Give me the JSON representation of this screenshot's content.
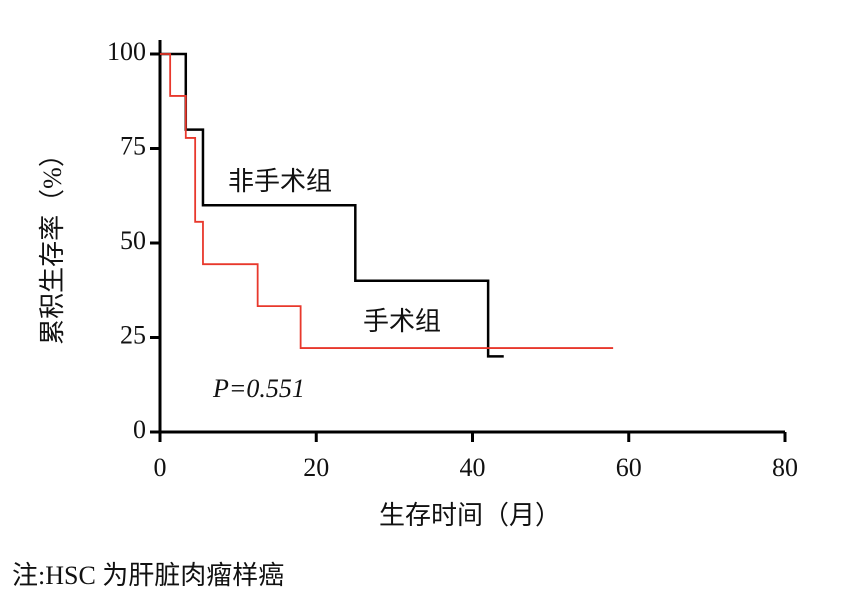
{
  "chart_data": {
    "type": "step",
    "x_label": "生存时间（月）",
    "y_label": "累积生存率（%）",
    "xlim": [
      0,
      80
    ],
    "xticks": [
      0,
      20,
      40,
      60,
      80
    ],
    "ylim": [
      0,
      100
    ],
    "yticks": [
      0,
      25,
      50,
      75,
      100
    ],
    "series": [
      {
        "name": "非手术组",
        "color": "#000000",
        "x": [
          0,
          3.3,
          3.3,
          5.5,
          5.5,
          25,
          25,
          42,
          42,
          44
        ],
        "values": [
          100,
          100,
          80,
          80,
          60,
          60,
          40,
          40,
          20,
          20
        ]
      },
      {
        "name": "手术组",
        "color": "#e8382c",
        "x": [
          0,
          1.3,
          1.3,
          3.3,
          3.3,
          4.5,
          4.5,
          5.5,
          5.5,
          12.5,
          12.5,
          18,
          18,
          58
        ],
        "values": [
          100,
          100,
          88.9,
          88.9,
          77.8,
          77.8,
          55.6,
          55.6,
          44.4,
          44.4,
          33.3,
          33.3,
          22.2,
          22.2
        ]
      }
    ],
    "annotation": "P=0.551"
  },
  "note": "注:HSC 为肝脏肉瘤样癌"
}
